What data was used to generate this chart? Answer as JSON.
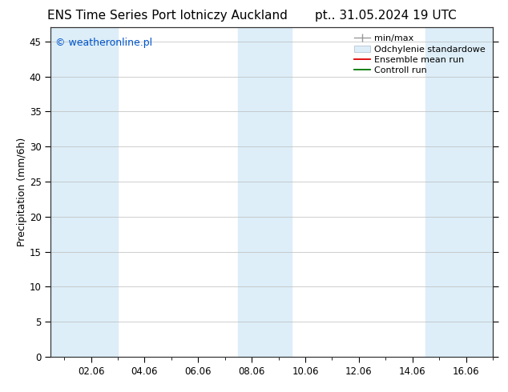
{
  "title_left": "ENS Time Series Port lotniczy Auckland",
  "title_right": "pt.. 31.05.2024 19 UTC",
  "ylabel": "Precipitation (mm/6h)",
  "watermark": "© weatheronline.pl",
  "watermark_color": "#0055cc",
  "ylim": [
    0,
    47
  ],
  "yticks": [
    0,
    5,
    10,
    15,
    20,
    25,
    30,
    35,
    40,
    45
  ],
  "xtick_labels": [
    "02.06",
    "04.06",
    "06.06",
    "08.06",
    "10.06",
    "12.06",
    "14.06",
    "16.06"
  ],
  "xtick_positions": [
    2,
    4,
    6,
    8,
    10,
    12,
    14,
    16
  ],
  "background_color": "#ffffff",
  "plot_bg_color": "#ffffff",
  "band_color": "#ddeef8",
  "bands": [
    [
      0.5,
      1.5
    ],
    [
      1.5,
      3.0
    ],
    [
      7.5,
      9.5
    ],
    [
      14.5,
      17.0
    ]
  ],
  "xlim": [
    0.5,
    17.0
  ],
  "title_fontsize": 11,
  "axis_fontsize": 9,
  "tick_fontsize": 8.5,
  "legend_fontsize": 8,
  "watermark_fontsize": 9
}
